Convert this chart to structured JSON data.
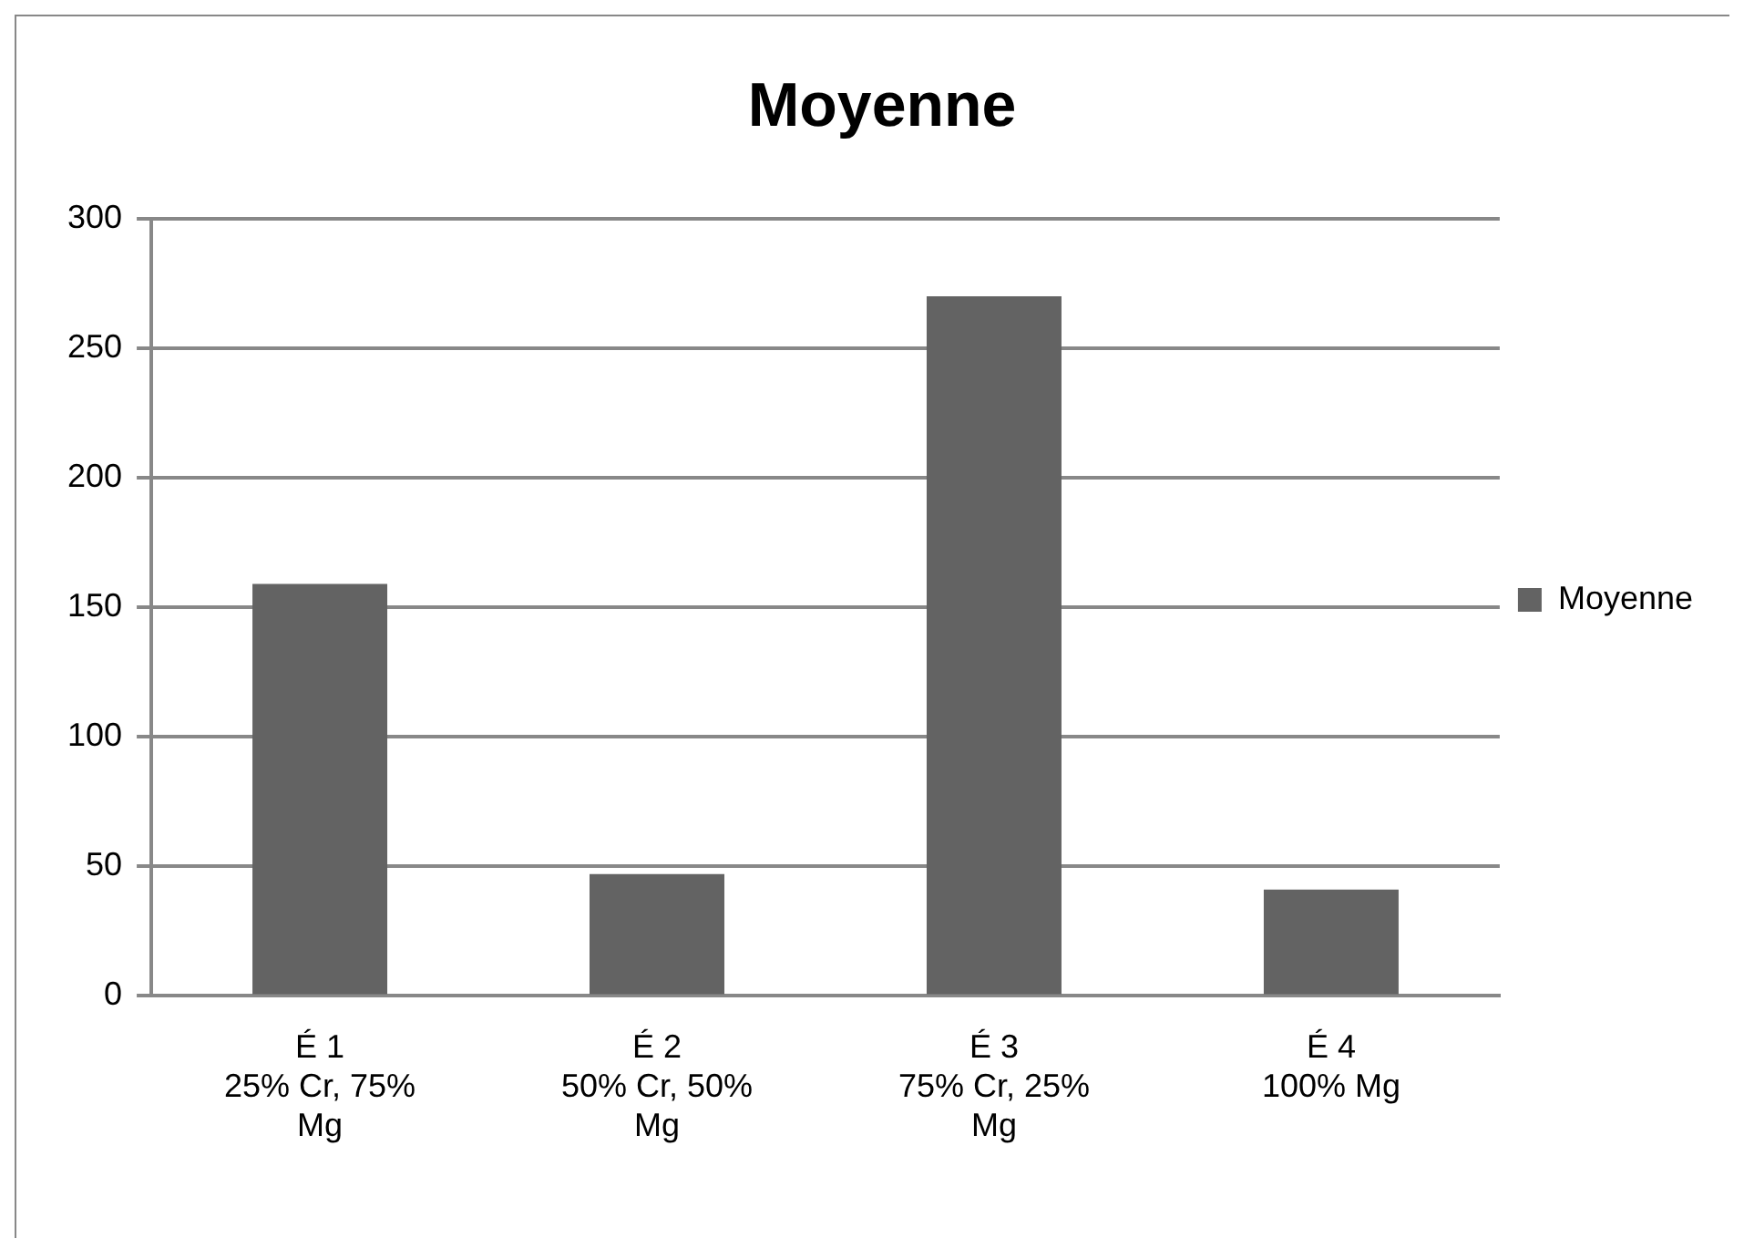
{
  "chart_data": {
    "type": "bar",
    "title": "Moyenne",
    "categories": [
      "É 1\n25% Cr, 75%\nMg",
      "É 2\n50% Cr, 50%\nMg",
      "É 3\n75% Cr, 25%\nMg",
      "É 4\n100% Mg"
    ],
    "series": [
      {
        "name": "Moyenne",
        "color": "#636363",
        "values": [
          159,
          47,
          270,
          41
        ]
      }
    ],
    "ylim": [
      0,
      300
    ],
    "yticks": [
      0,
      50,
      100,
      150,
      200,
      250,
      300
    ],
    "grid": "y",
    "legend": "right"
  }
}
